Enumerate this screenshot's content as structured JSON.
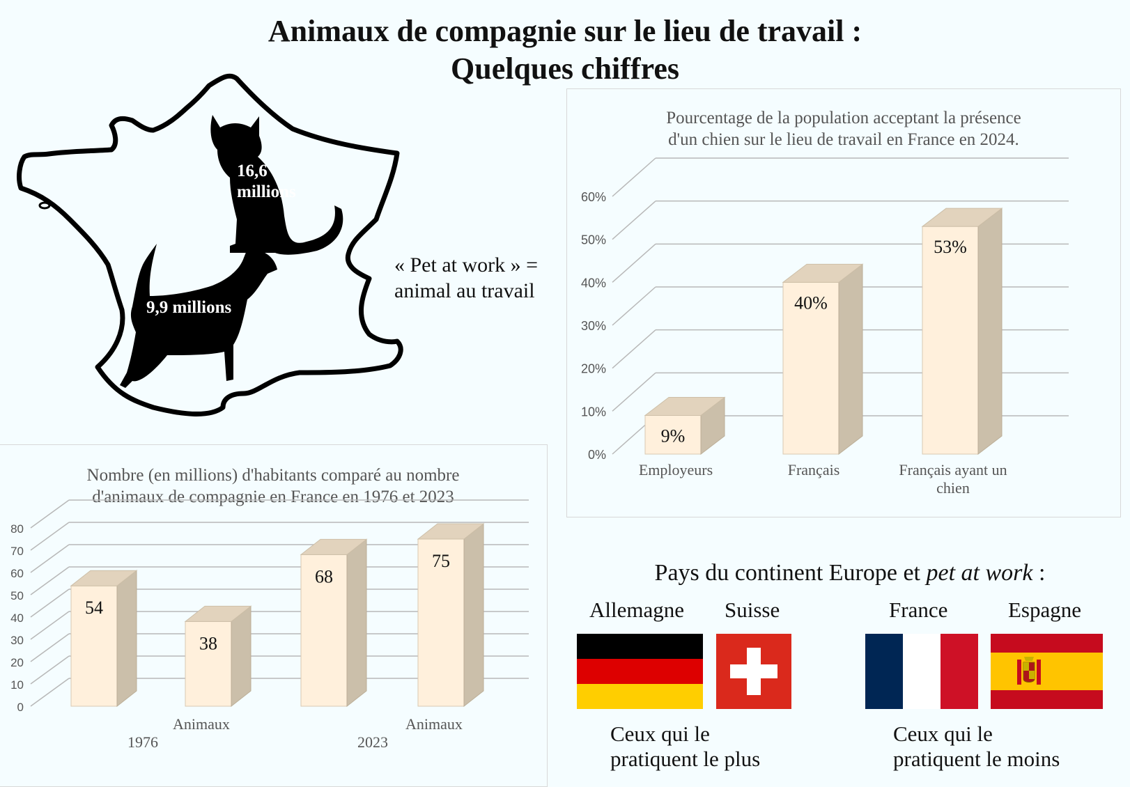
{
  "title": {
    "line1": "Animaux de compagnie sur le lieu de travail :",
    "line2": "Quelques chiffres"
  },
  "map": {
    "cat_value_line1": "16,6",
    "cat_value_line2": "millions",
    "dog_value": "9,9 millions"
  },
  "definition": {
    "line1": "« Pet at work » =",
    "line2": "animal au travail"
  },
  "chart_data": [
    {
      "type": "bar",
      "title": "Pourcentage de la population acceptant la présence d'un chien sur le lieu de travail en France en 2024.",
      "title_lines": [
        "Pourcentage de la population acceptant la présence",
        "d'un chien sur le lieu de travail en France en 2024."
      ],
      "categories": [
        "Employeurs",
        "Français",
        "Français ayant un chien"
      ],
      "category_lines": [
        [
          "Employeurs"
        ],
        [
          "Français"
        ],
        [
          "Français ayant un",
          "chien"
        ]
      ],
      "values": [
        9,
        40,
        53
      ],
      "data_labels": [
        "9%",
        "40%",
        "53%"
      ],
      "ytick_labels": [
        "0%",
        "10%",
        "20%",
        "30%",
        "40%",
        "50%",
        "60%"
      ],
      "ylim": [
        0,
        60
      ],
      "grid": true,
      "legend": "none",
      "bar_front_color": "#fff0dc",
      "bar_side_color": "#cbbfaa",
      "bar_top_color": "#e2d3bd"
    },
    {
      "type": "bar",
      "title": "Nombre (en millions) d'habitants comparé au nombre d'animaux de compagnie en France en 1976 et 2023",
      "title_lines": [
        "Nombre (en millions) d'habitants comparé au nombre",
        "d'animaux de compagnie en France en 1976 et 2023"
      ],
      "groups": [
        "1976",
        "2023"
      ],
      "categories": [
        "",
        "Animaux",
        "",
        "Animaux"
      ],
      "values": [
        54,
        38,
        68,
        75
      ],
      "data_labels": [
        "54",
        "38",
        "68",
        "75"
      ],
      "ytick_labels": [
        "0",
        "10",
        "20",
        "30",
        "40",
        "50",
        "60",
        "70",
        "80"
      ],
      "ylim": [
        0,
        80
      ],
      "grid": true,
      "legend": "none",
      "bar_front_color": "#fff0dc",
      "bar_side_color": "#cbbfaa",
      "bar_top_color": "#e2d3bd"
    }
  ],
  "europe": {
    "title_plain": "Pays du continent Europe et ",
    "title_italic": "pet at work",
    "title_end": " :",
    "countries": [
      "Allemagne",
      "Suisse",
      "France",
      "Espagne"
    ],
    "caption_most_line1": "Ceux qui le",
    "caption_most_line2": "pratiquent le plus",
    "caption_least_line1": "Ceux qui le",
    "caption_least_line2": "pratiquent le moins"
  }
}
